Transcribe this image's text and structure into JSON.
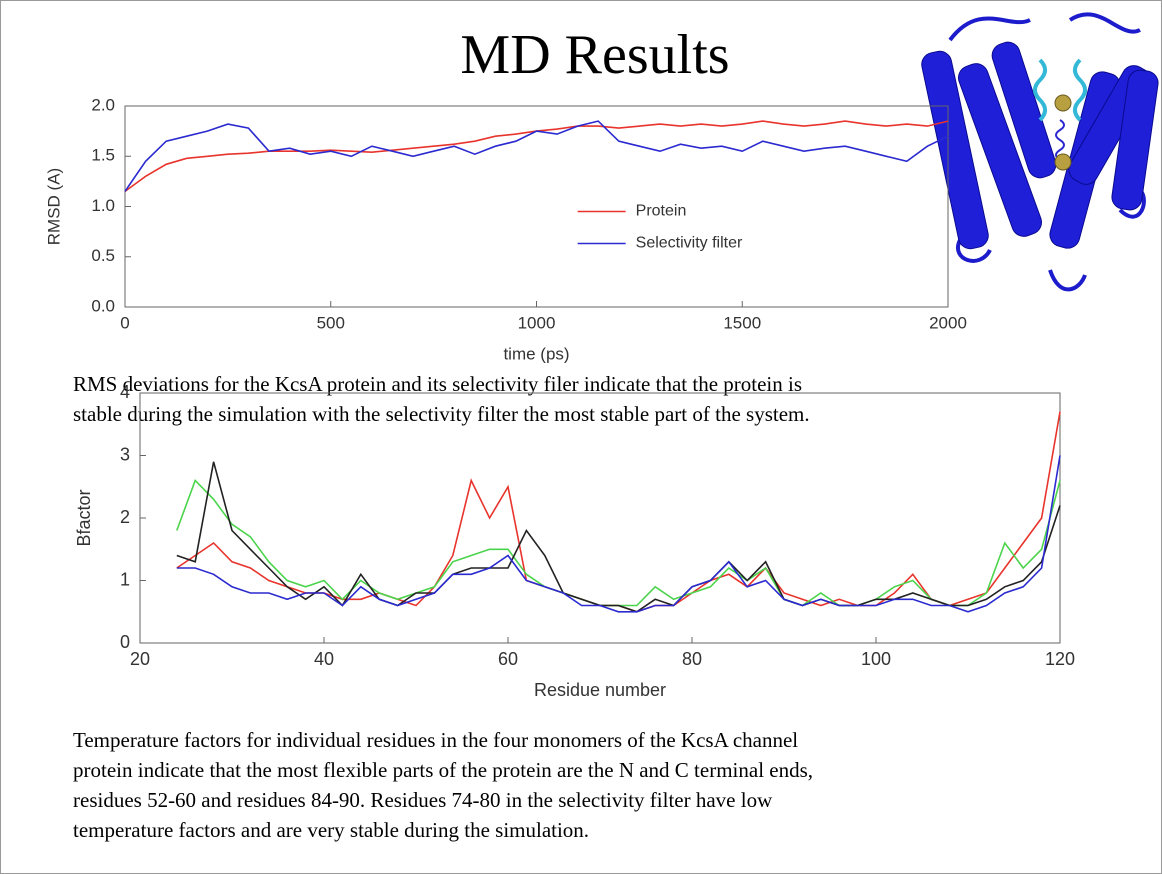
{
  "title": "MD Results",
  "captions": [
    [
      "RMS deviations for the KcsA protein and its selectivity filer indicate that the protein is",
      "stable during the simulation with the selectivity filter the most stable part of the system."
    ],
    [
      "Temperature factors for individual residues in the four monomers of the KcsA channel",
      "protein indicate that the most flexible parts of the protein are the N and C terminal ends,",
      "residues 52-60 and residues 84-90. Residues 74-80 in the selectivity filter have low",
      "temperature factors and are very stable during the simulation."
    ]
  ],
  "chart_data": [
    {
      "type": "line",
      "x_label": "time (ps)",
      "y_label": "RMSD (A)",
      "x": [
        0,
        50,
        100,
        150,
        200,
        250,
        300,
        350,
        400,
        450,
        500,
        550,
        600,
        650,
        700,
        750,
        800,
        850,
        900,
        950,
        1000,
        1050,
        1100,
        1150,
        1200,
        1250,
        1300,
        1350,
        1400,
        1450,
        1500,
        1550,
        1600,
        1650,
        1700,
        1750,
        1800,
        1850,
        1900,
        1950,
        2000
      ],
      "series": [
        {
          "name": "Protein",
          "color": "#e8342c",
          "values": [
            1.15,
            1.3,
            1.42,
            1.48,
            1.5,
            1.52,
            1.53,
            1.55,
            1.55,
            1.55,
            1.56,
            1.55,
            1.54,
            1.56,
            1.58,
            1.6,
            1.62,
            1.65,
            1.7,
            1.72,
            1.75,
            1.77,
            1.8,
            1.8,
            1.78,
            1.8,
            1.82,
            1.8,
            1.82,
            1.8,
            1.82,
            1.85,
            1.82,
            1.8,
            1.82,
            1.85,
            1.82,
            1.8,
            1.82,
            1.8,
            1.85
          ]
        },
        {
          "name": "Selectivity filter",
          "color": "#2a2ad0",
          "values": [
            1.15,
            1.45,
            1.65,
            1.7,
            1.75,
            1.82,
            1.78,
            1.55,
            1.58,
            1.52,
            1.55,
            1.5,
            1.6,
            1.55,
            1.5,
            1.55,
            1.6,
            1.52,
            1.6,
            1.65,
            1.75,
            1.72,
            1.8,
            1.85,
            1.65,
            1.6,
            1.55,
            1.62,
            1.58,
            1.6,
            1.55,
            1.65,
            1.6,
            1.55,
            1.58,
            1.6,
            1.55,
            1.5,
            1.45,
            1.6,
            1.7
          ]
        }
      ],
      "xlim": [
        0,
        2000
      ],
      "xticks": [
        0,
        500,
        1000,
        1500,
        2000
      ],
      "ylim": [
        0,
        2
      ],
      "yticks": [
        {
          "value": 0,
          "label": "0.0"
        },
        {
          "value": 0.5,
          "label": "0.5"
        },
        {
          "value": 1,
          "label": "1.0"
        },
        {
          "value": 1.5,
          "label": "1.5"
        },
        {
          "value": 2,
          "label": "2.0"
        }
      ],
      "legend": "center right"
    },
    {
      "type": "line",
      "x_label": "Residue number",
      "y_label": "Bfactor",
      "x": [
        24,
        26,
        28,
        30,
        32,
        34,
        36,
        38,
        40,
        42,
        44,
        46,
        48,
        50,
        52,
        54,
        56,
        58,
        60,
        62,
        64,
        66,
        68,
        70,
        72,
        74,
        76,
        78,
        80,
        82,
        84,
        86,
        88,
        90,
        92,
        94,
        96,
        98,
        100,
        102,
        104,
        106,
        108,
        110,
        112,
        114,
        116,
        118,
        120
      ],
      "series": [
        {
          "color": "#e8342c",
          "values": [
            1.2,
            1.4,
            1.6,
            1.3,
            1.2,
            1.0,
            0.9,
            0.8,
            0.8,
            0.7,
            0.7,
            0.8,
            0.7,
            0.6,
            0.9,
            1.4,
            2.6,
            2.0,
            2.5,
            1.0,
            0.9,
            0.8,
            0.7,
            0.6,
            0.6,
            0.5,
            0.6,
            0.6,
            0.8,
            1.0,
            1.1,
            0.9,
            1.2,
            0.8,
            0.7,
            0.6,
            0.7,
            0.6,
            0.6,
            0.8,
            1.1,
            0.7,
            0.6,
            0.7,
            0.8,
            1.2,
            1.6,
            2.0,
            3.7
          ]
        },
        {
          "color": "#4bd44b",
          "values": [
            1.8,
            2.6,
            2.3,
            1.9,
            1.7,
            1.3,
            1.0,
            0.9,
            1.0,
            0.7,
            1.0,
            0.8,
            0.7,
            0.8,
            0.9,
            1.3,
            1.4,
            1.5,
            1.5,
            1.1,
            0.9,
            0.8,
            0.7,
            0.6,
            0.6,
            0.6,
            0.9,
            0.7,
            0.8,
            0.9,
            1.2,
            1.0,
            1.2,
            0.7,
            0.6,
            0.8,
            0.6,
            0.6,
            0.7,
            0.9,
            1.0,
            0.7,
            0.6,
            0.6,
            0.8,
            1.6,
            1.2,
            1.5,
            2.6
          ]
        },
        {
          "color": "#222222",
          "values": [
            1.4,
            1.3,
            2.9,
            1.8,
            1.5,
            1.2,
            0.9,
            0.7,
            0.9,
            0.6,
            1.1,
            0.7,
            0.6,
            0.8,
            0.8,
            1.1,
            1.2,
            1.2,
            1.2,
            1.8,
            1.4,
            0.8,
            0.7,
            0.6,
            0.6,
            0.5,
            0.7,
            0.6,
            0.9,
            1.0,
            1.3,
            1.0,
            1.3,
            0.7,
            0.6,
            0.7,
            0.6,
            0.6,
            0.7,
            0.7,
            0.8,
            0.7,
            0.6,
            0.6,
            0.7,
            0.9,
            1.0,
            1.3,
            2.2
          ]
        },
        {
          "color": "#2a2ad0",
          "values": [
            1.2,
            1.2,
            1.1,
            0.9,
            0.8,
            0.8,
            0.7,
            0.8,
            0.8,
            0.6,
            0.9,
            0.7,
            0.6,
            0.7,
            0.8,
            1.1,
            1.1,
            1.2,
            1.4,
            1.0,
            0.9,
            0.8,
            0.6,
            0.6,
            0.5,
            0.5,
            0.6,
            0.6,
            0.9,
            1.0,
            1.3,
            0.9,
            1.0,
            0.7,
            0.6,
            0.7,
            0.6,
            0.6,
            0.6,
            0.7,
            0.7,
            0.6,
            0.6,
            0.5,
            0.6,
            0.8,
            0.9,
            1.2,
            3.0
          ]
        }
      ],
      "xlim": [
        20,
        120
      ],
      "xticks": [
        20,
        40,
        60,
        80,
        100,
        120
      ],
      "ylim": [
        0,
        4
      ],
      "yticks": [
        0,
        1,
        2,
        3,
        4
      ]
    }
  ]
}
